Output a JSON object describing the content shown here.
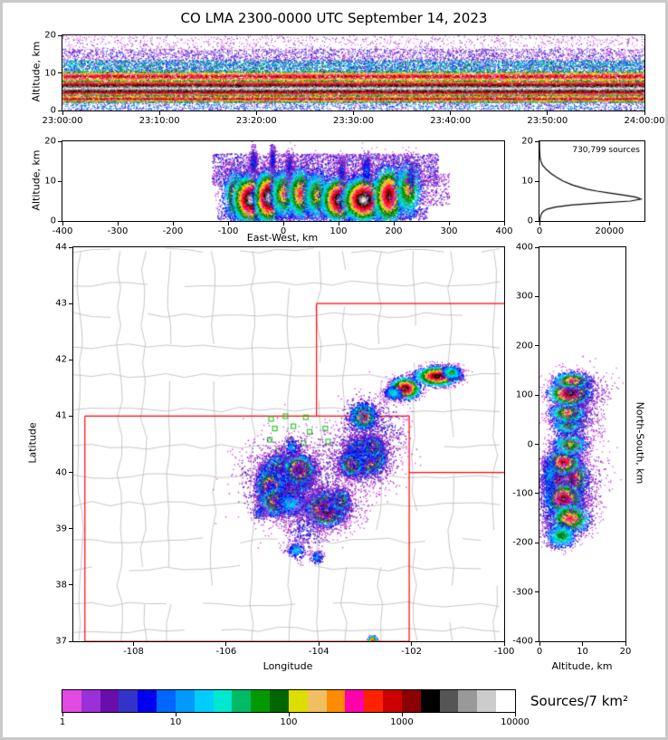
{
  "title": "CO LMA 2300-0000 UTC September 14, 2023",
  "colorbar": {
    "label": "Sources/7 km²",
    "tick_labels": [
      "1",
      "10",
      "100",
      "1000",
      "10000"
    ],
    "scale": "log",
    "colors": [
      "#E24AE2",
      "#9B30D9",
      "#6A0DAD",
      "#3333CC",
      "#0000EE",
      "#0066FF",
      "#0099FF",
      "#00CCFF",
      "#00E8D0",
      "#00BB66",
      "#009900",
      "#006600",
      "#DDDD00",
      "#F0C060",
      "#FF8C00",
      "#FF00AA",
      "#FF2200",
      "#CC0000",
      "#8B0000",
      "#000000",
      "#555555",
      "#999999",
      "#CCCCCC",
      "#FFFFFF"
    ]
  },
  "map_colors": {
    "state_border": "#ff0000",
    "county_border": "#b9b9b9",
    "station_marker": "#2eca2e"
  },
  "chart_data": [
    {
      "id": "time_height",
      "type": "scatter-density",
      "xlabel": "",
      "ylabel": "Altitude, km",
      "x_tick_labels": [
        "23:00:00",
        "23:10:00",
        "23:20:00",
        "23:30:00",
        "23:40:00",
        "23:50:00",
        "24:00:00"
      ],
      "x_ticks_minutes": [
        0,
        10,
        20,
        30,
        40,
        50,
        60
      ],
      "xlim_minutes": [
        0,
        60
      ],
      "ylim": [
        0,
        20
      ],
      "y_ticks": [
        0,
        10,
        20
      ],
      "band_format": "x0,x1,alt0,alt1,n_points,intensity_lo,intensity_hi,center_weighted",
      "bands": [
        [
          0,
          60,
          4.2,
          7.8,
          26000,
          0.55,
          1.0,
          1
        ],
        [
          0,
          60,
          7.8,
          10.5,
          11000,
          0.4,
          0.8,
          1
        ],
        [
          0,
          60,
          2.2,
          4.2,
          10000,
          0.35,
          0.8,
          1
        ],
        [
          0,
          60,
          10.5,
          13.5,
          7000,
          0.08,
          0.45,
          0
        ],
        [
          0,
          60,
          13.5,
          16.5,
          3000,
          0.0,
          0.2,
          0
        ],
        [
          0,
          60,
          16.5,
          20,
          900,
          0.0,
          0.1,
          0
        ],
        [
          0,
          60,
          0,
          2.2,
          2200,
          0.0,
          0.35,
          0
        ]
      ]
    },
    {
      "id": "east_west_height",
      "type": "scatter-density",
      "xlabel": "East-West, km",
      "ylabel": "Altitude, km",
      "xlim": [
        -400,
        400
      ],
      "x_ticks": [
        -400,
        -300,
        -200,
        -100,
        0,
        100,
        200,
        300,
        400
      ],
      "ylim": [
        0,
        20
      ],
      "y_ticks": [
        0,
        10,
        20
      ],
      "blob_format": "x,y,sx,sy,n_points,core_intensity_0_1",
      "blobs": [
        [
          -85,
          6.5,
          12,
          3.0,
          2000,
          0.7
        ],
        [
          -60,
          5.5,
          15,
          2.8,
          5000,
          1.0
        ],
        [
          -28,
          6.0,
          12,
          3.0,
          4500,
          1.0
        ],
        [
          0,
          7.0,
          12,
          3.0,
          2000,
          0.65
        ],
        [
          30,
          7.0,
          12,
          3.2,
          2200,
          0.7
        ],
        [
          60,
          6.5,
          12,
          3.0,
          1800,
          0.6
        ],
        [
          100,
          5.5,
          15,
          2.6,
          4500,
          0.95
        ],
        [
          145,
          5.5,
          18,
          2.6,
          5500,
          1.0
        ],
        [
          190,
          6.5,
          14,
          3.5,
          3000,
          0.85
        ],
        [
          225,
          8.0,
          12,
          3.5,
          1500,
          0.6
        ],
        [
          -55,
          15,
          4,
          2,
          350,
          0.2
        ],
        [
          -20,
          15.5,
          3,
          2,
          300,
          0.2
        ],
        [
          10,
          14,
          4,
          2,
          250,
          0.18
        ],
        [
          105,
          12.5,
          4,
          1.8,
          250,
          0.2
        ],
        [
          150,
          13,
          5,
          2,
          300,
          0.25
        ],
        [
          230,
          11,
          5,
          2,
          200,
          0.2
        ]
      ],
      "bands": [
        [
          -130,
          280,
          9,
          17,
          3800,
          0.0,
          0.2,
          0
        ],
        [
          -120,
          260,
          0.5,
          3.5,
          1200,
          0.0,
          0.25,
          0
        ],
        [
          240,
          300,
          4,
          12,
          300,
          0.0,
          0.15,
          0
        ]
      ]
    },
    {
      "id": "altitude_histogram",
      "type": "line",
      "annotation": "730,799 sources",
      "xlabel": "",
      "ylabel": "",
      "xlim": [
        0,
        30000
      ],
      "x_ticks": [
        0,
        20000
      ],
      "ylim": [
        0,
        20
      ],
      "y_ticks": [
        0,
        10,
        20
      ],
      "profile_alt_km": [
        0,
        0.5,
        1,
        1.5,
        2,
        2.5,
        3,
        3.5,
        4,
        4.5,
        5,
        5.5,
        6,
        6.5,
        7,
        7.5,
        8,
        9,
        10,
        11,
        12,
        13,
        14,
        15,
        16,
        18,
        20
      ],
      "profile_counts": [
        100,
        150,
        250,
        400,
        700,
        1200,
        2200,
        4500,
        9000,
        17000,
        26000,
        29000,
        27500,
        24000,
        20000,
        16500,
        13500,
        9500,
        6800,
        4800,
        3200,
        1900,
        900,
        400,
        150,
        30,
        0
      ]
    },
    {
      "id": "plan_view",
      "type": "scatter-density-map",
      "xlabel": "Longitude",
      "ylabel": "Latitude",
      "xlim": [
        -109.3,
        -100
      ],
      "x_ticks": [
        -108,
        -106,
        -104,
        -102,
        -100
      ],
      "ylim": [
        37,
        44
      ],
      "y_ticks": [
        37,
        38,
        39,
        40,
        41,
        42,
        43,
        44
      ],
      "state_borders": [
        [
          [
            -109.05,
            41
          ],
          [
            -102.05,
            41
          ],
          [
            -102.05,
            37
          ],
          [
            -109.05,
            37
          ],
          [
            -109.05,
            41
          ]
        ],
        [
          [
            -104.05,
            41
          ],
          [
            -104.05,
            43
          ]
        ],
        [
          [
            -104.05,
            43
          ],
          [
            -100,
            43
          ]
        ],
        [
          [
            -102.05,
            40
          ],
          [
            -100,
            40
          ]
        ]
      ],
      "stations_lon_lat": [
        [
          -105.03,
          40.95
        ],
        [
          -104.72,
          41.0
        ],
        [
          -104.28,
          40.98
        ],
        [
          -104.95,
          40.78
        ],
        [
          -104.55,
          40.82
        ],
        [
          -104.2,
          40.72
        ],
        [
          -103.86,
          40.78
        ],
        [
          -105.06,
          40.58
        ],
        [
          -104.62,
          40.58
        ],
        [
          -104.33,
          40.52
        ],
        [
          -103.8,
          40.55
        ],
        [
          -104.88,
          40.38
        ],
        [
          -104.42,
          40.32
        ]
      ],
      "blob_format": "lon,lat,sx,sy,n_points,core_intensity_0_1",
      "blobs": [
        [
          -104.75,
          39.9,
          0.22,
          0.17,
          9000,
          1.0
        ],
        [
          -104.45,
          40.05,
          0.15,
          0.12,
          3500,
          0.85
        ],
        [
          -105.05,
          39.75,
          0.14,
          0.15,
          2500,
          0.8
        ],
        [
          -104.95,
          39.5,
          0.15,
          0.12,
          2000,
          0.7
        ],
        [
          -104.75,
          39.85,
          0.45,
          0.35,
          1800,
          0.22
        ],
        [
          -104.6,
          39.45,
          0.2,
          0.12,
          800,
          0.35
        ],
        [
          -103.0,
          40.3,
          0.18,
          0.14,
          6000,
          1.0
        ],
        [
          -103.3,
          40.15,
          0.12,
          0.1,
          2000,
          0.7
        ],
        [
          -102.85,
          40.45,
          0.1,
          0.08,
          1500,
          0.7
        ],
        [
          -103.05,
          40.3,
          0.35,
          0.28,
          1500,
          0.22
        ],
        [
          -103.85,
          39.35,
          0.18,
          0.13,
          3500,
          0.95
        ],
        [
          -103.55,
          39.5,
          0.1,
          0.1,
          1000,
          0.6
        ],
        [
          -103.75,
          39.4,
          0.32,
          0.22,
          900,
          0.2
        ],
        [
          -103.05,
          41.0,
          0.12,
          0.1,
          1800,
          0.85
        ],
        [
          -103.05,
          41.0,
          0.22,
          0.18,
          400,
          0.3
        ],
        [
          -102.15,
          41.5,
          0.15,
          0.09,
          1800,
          0.9
        ],
        [
          -102.4,
          41.42,
          0.1,
          0.06,
          400,
          0.4
        ],
        [
          -101.45,
          41.72,
          0.22,
          0.08,
          2200,
          0.9
        ],
        [
          -101.15,
          41.78,
          0.1,
          0.06,
          500,
          0.5
        ],
        [
          -104.3,
          39.0,
          0.25,
          0.2,
          350,
          0.18
        ],
        [
          -104.5,
          38.62,
          0.1,
          0.07,
          250,
          0.35
        ],
        [
          -104.05,
          38.5,
          0.07,
          0.06,
          150,
          0.3
        ],
        [
          -105.3,
          39.3,
          0.08,
          0.08,
          120,
          0.25
        ],
        [
          -104.1,
          39.9,
          0.5,
          0.4,
          700,
          0.13
        ],
        [
          -102.6,
          40.8,
          0.3,
          0.25,
          250,
          0.15
        ],
        [
          -104.6,
          40.45,
          0.1,
          0.08,
          200,
          0.3
        ],
        [
          -102.85,
          37.02,
          0.05,
          0.04,
          160,
          0.8
        ]
      ]
    },
    {
      "id": "north_south_height",
      "type": "scatter-density",
      "xlabel": "Altitude, km",
      "ylabel": "North-South, km",
      "xlim": [
        0,
        20
      ],
      "x_ticks": [
        0,
        10,
        20
      ],
      "ylim": [
        -400,
        400
      ],
      "y_ticks": [
        -400,
        -300,
        -200,
        -100,
        0,
        100,
        200,
        300,
        400
      ],
      "blob_format": "alt,ns,sx,sy,n_points,core_intensity_0_1",
      "blobs": [
        [
          6,
          -70,
          2.2,
          20,
          5500,
          1.0
        ],
        [
          5.5,
          -110,
          2.0,
          15,
          3000,
          0.85
        ],
        [
          7,
          -150,
          2.2,
          15,
          2000,
          0.7
        ],
        [
          5.5,
          -35,
          1.8,
          12,
          2000,
          0.8
        ],
        [
          7,
          0,
          2.0,
          12,
          1200,
          0.55
        ],
        [
          6.5,
          40,
          1.8,
          10,
          1000,
          0.5
        ],
        [
          6.5,
          65,
          2.0,
          10,
          1500,
          0.65
        ],
        [
          7,
          105,
          2.2,
          12,
          2500,
          0.9
        ],
        [
          7.5,
          130,
          2.0,
          8,
          1200,
          0.7
        ],
        [
          5,
          -185,
          1.8,
          12,
          900,
          0.5
        ],
        [
          9,
          -80,
          3,
          40,
          800,
          0.15
        ],
        [
          9,
          60,
          3,
          40,
          600,
          0.15
        ],
        [
          10,
          110,
          3,
          20,
          400,
          0.18
        ],
        [
          2,
          -100,
          1.2,
          40,
          500,
          0.25
        ],
        [
          2.5,
          -60,
          1.0,
          20,
          300,
          0.3
        ]
      ]
    }
  ]
}
